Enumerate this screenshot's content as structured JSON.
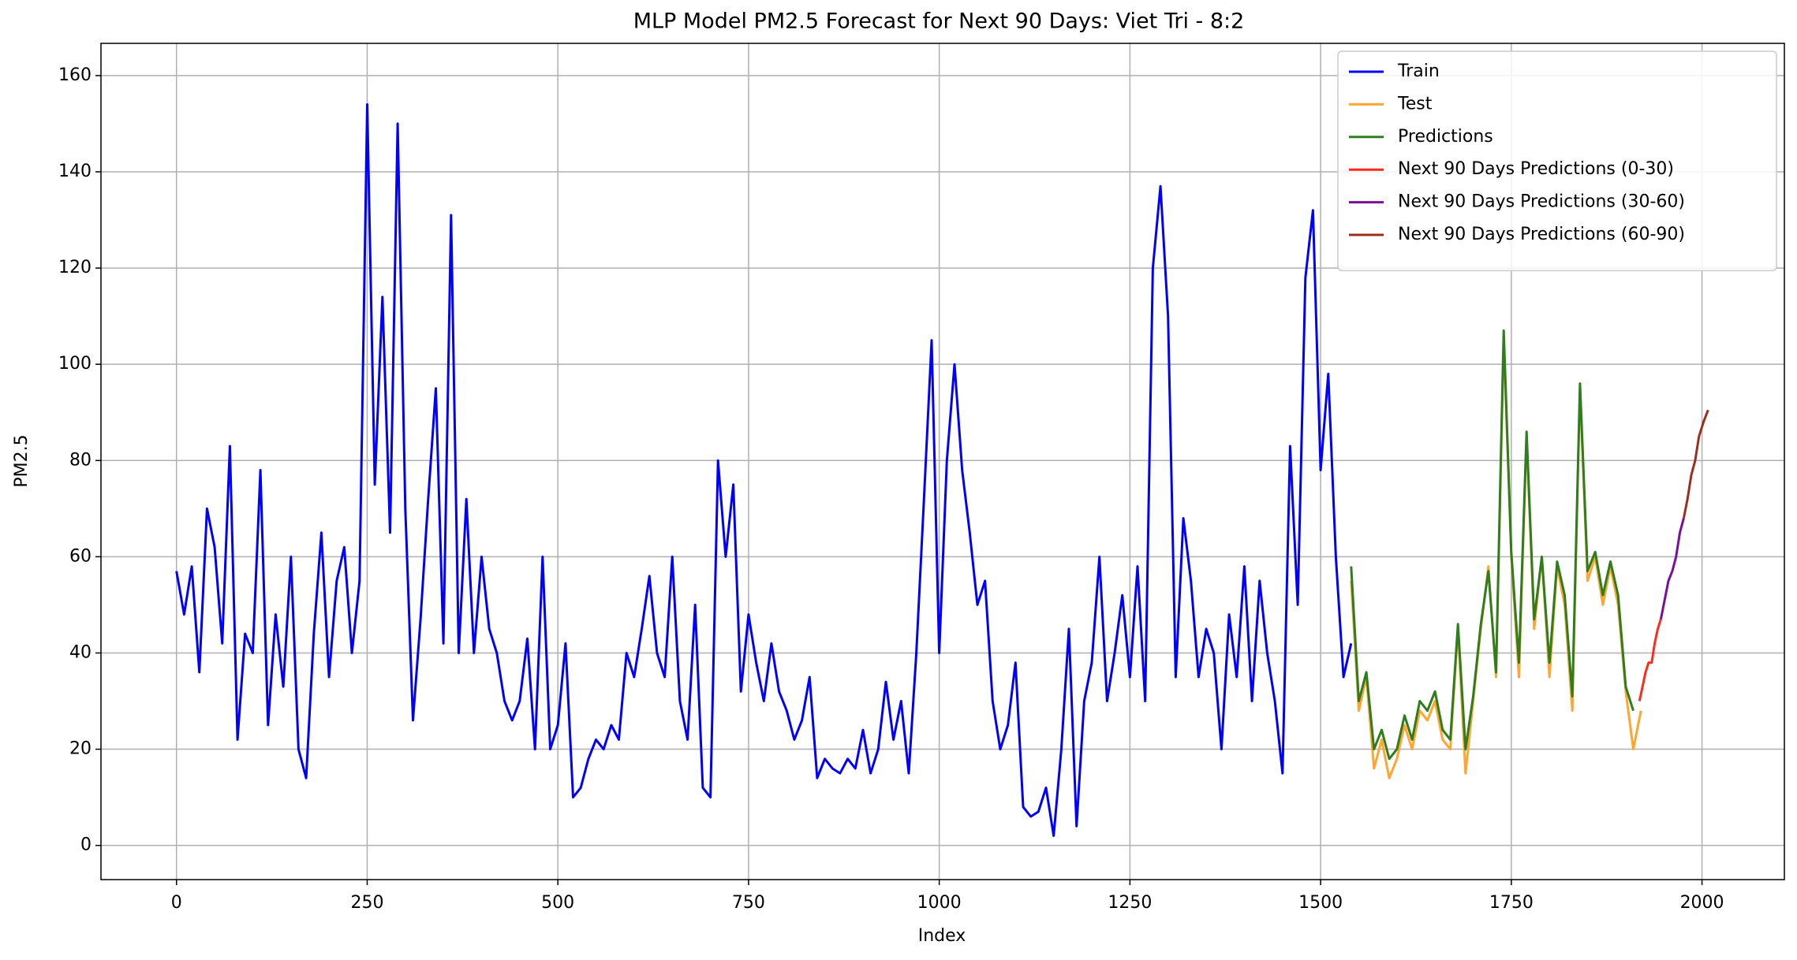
{
  "chart_data": {
    "type": "line",
    "title": "MLP Model PM2.5 Forecast for Next 90 Days: Viet Tri - 8:2",
    "xlabel": "Index",
    "ylabel": "PM2.5",
    "xlim": [
      -99,
      2108
    ],
    "ylim": [
      -7.1,
      166.7
    ],
    "xticks": [
      0,
      250,
      500,
      750,
      1000,
      1250,
      1500,
      1750,
      2000
    ],
    "yticks": [
      0,
      20,
      40,
      60,
      80,
      100,
      120,
      140,
      160
    ],
    "grid": true,
    "legend": "upper right",
    "series": [
      {
        "name": "Train",
        "color": "#0000ff",
        "x": [
          0,
          10,
          20,
          30,
          40,
          50,
          60,
          70,
          80,
          90,
          100,
          110,
          120,
          130,
          140,
          150,
          160,
          170,
          180,
          190,
          200,
          210,
          220,
          230,
          240,
          250,
          260,
          270,
          280,
          290,
          300,
          310,
          320,
          330,
          340,
          350,
          360,
          370,
          380,
          390,
          400,
          410,
          420,
          430,
          440,
          450,
          460,
          470,
          480,
          490,
          500,
          510,
          520,
          530,
          540,
          550,
          560,
          570,
          580,
          590,
          600,
          610,
          620,
          630,
          640,
          650,
          660,
          670,
          680,
          690,
          700,
          710,
          720,
          730,
          740,
          750,
          760,
          770,
          780,
          790,
          800,
          810,
          820,
          830,
          840,
          850,
          860,
          870,
          880,
          890,
          900,
          910,
          920,
          930,
          940,
          950,
          960,
          970,
          980,
          990,
          1000,
          1010,
          1020,
          1030,
          1040,
          1050,
          1060,
          1070,
          1080,
          1090,
          1100,
          1110,
          1120,
          1130,
          1140,
          1150,
          1160,
          1170,
          1180,
          1190,
          1200,
          1210,
          1220,
          1230,
          1240,
          1250,
          1260,
          1270,
          1280,
          1290,
          1300,
          1310,
          1320,
          1330,
          1340,
          1350,
          1360,
          1370,
          1380,
          1390,
          1400,
          1410,
          1420,
          1430,
          1440,
          1450,
          1460,
          1470,
          1480,
          1490,
          1500,
          1510,
          1520,
          1530,
          1540
        ],
        "values": [
          57,
          48,
          58,
          36,
          70,
          62,
          42,
          83,
          22,
          44,
          40,
          78,
          25,
          48,
          33,
          60,
          20,
          14,
          44,
          65,
          35,
          55,
          62,
          40,
          55,
          154,
          75,
          114,
          65,
          150,
          70,
          26,
          47,
          72,
          95,
          42,
          131,
          40,
          72,
          40,
          60,
          45,
          40,
          30,
          26,
          30,
          43,
          20,
          60,
          20,
          25,
          42,
          10,
          12,
          18,
          22,
          20,
          25,
          22,
          40,
          35,
          45,
          56,
          40,
          35,
          60,
          30,
          22,
          50,
          12,
          10,
          80,
          60,
          75,
          32,
          48,
          38,
          30,
          42,
          32,
          28,
          22,
          26,
          35,
          14,
          18,
          16,
          15,
          18,
          16,
          24,
          15,
          20,
          34,
          22,
          30,
          15,
          40,
          72,
          105,
          40,
          80,
          100,
          78,
          65,
          50,
          55,
          30,
          20,
          25,
          38,
          8,
          6,
          7,
          12,
          2,
          20,
          45,
          4,
          30,
          38,
          60,
          30,
          40,
          52,
          35,
          58,
          30,
          120,
          137,
          110,
          35,
          68,
          55,
          35,
          45,
          40,
          20,
          48,
          35,
          58,
          30,
          55,
          40,
          30,
          15,
          83,
          50,
          118,
          132,
          78,
          98,
          60,
          35,
          42
        ]
      },
      {
        "name": "Test",
        "color": "#ffa530",
        "x": [
          1540,
          1550,
          1560,
          1570,
          1580,
          1590,
          1600,
          1610,
          1620,
          1630,
          1640,
          1650,
          1660,
          1670,
          1680,
          1690,
          1700,
          1710,
          1720,
          1730,
          1740,
          1750,
          1760,
          1770,
          1780,
          1790,
          1800,
          1810,
          1820,
          1830,
          1840,
          1850,
          1860,
          1870,
          1880,
          1890,
          1900,
          1910,
          1920
        ],
        "values": [
          55,
          28,
          35,
          16,
          22,
          14,
          18,
          25,
          20,
          28,
          26,
          30,
          22,
          20,
          45,
          15,
          30,
          45,
          58,
          35,
          105,
          60,
          35,
          85,
          45,
          60,
          35,
          58,
          50,
          28,
          95,
          55,
          60,
          50,
          58,
          50,
          32,
          20,
          28
        ]
      },
      {
        "name": "Predictions",
        "color": "#2e7d1e",
        "x": [
          1540,
          1550,
          1560,
          1570,
          1580,
          1590,
          1600,
          1610,
          1620,
          1630,
          1640,
          1650,
          1660,
          1670,
          1680,
          1690,
          1700,
          1710,
          1720,
          1730,
          1740,
          1750,
          1760,
          1770,
          1780,
          1790,
          1800,
          1810,
          1820,
          1830,
          1840,
          1850,
          1860,
          1870,
          1880,
          1890,
          1900,
          1910
        ],
        "values": [
          58,
          30,
          36,
          20,
          24,
          18,
          20,
          27,
          22,
          30,
          28,
          32,
          24,
          22,
          46,
          20,
          31,
          46,
          57,
          36,
          107,
          61,
          38,
          86,
          47,
          60,
          38,
          59,
          52,
          31,
          96,
          57,
          61,
          52,
          59,
          52,
          33,
          28
        ]
      },
      {
        "name": "Next 90 Days Predictions (0-30)",
        "color": "#ff2a1a",
        "x": [
          1918,
          1922,
          1926,
          1930,
          1934,
          1938,
          1942,
          1946
        ],
        "values": [
          30,
          33,
          36,
          38,
          38,
          42,
          45,
          47
        ]
      },
      {
        "name": "Next 90 Days Predictions (30-60)",
        "color": "#7b0f9a",
        "x": [
          1946,
          1951,
          1956,
          1961,
          1966,
          1971,
          1976
        ],
        "values": [
          47,
          51,
          55,
          57,
          60,
          65,
          68
        ]
      },
      {
        "name": "Next 90 Days Predictions (60-90)",
        "color": "#9a2f1e",
        "x": [
          1976,
          1981,
          1986,
          1991,
          1996,
          2002,
          2008
        ],
        "values": [
          68,
          72,
          77,
          80,
          85,
          88,
          90.5
        ]
      }
    ]
  }
}
